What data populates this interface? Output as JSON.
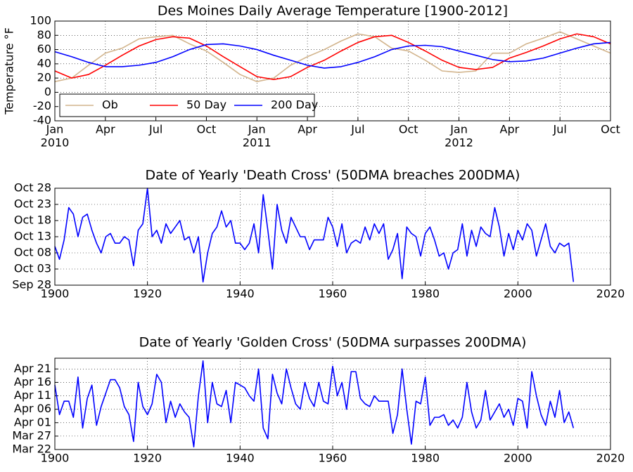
{
  "chart_data": [
    {
      "type": "line",
      "title": "Des Moines Daily Average Temperature [1900-2012]",
      "ylabel": "Temperature °F",
      "x": [
        "2010-01",
        "2010-02",
        "2010-03",
        "2010-04",
        "2010-05",
        "2010-06",
        "2010-07",
        "2010-08",
        "2010-09",
        "2010-10",
        "2010-11",
        "2010-12",
        "2011-01",
        "2011-02",
        "2011-03",
        "2011-04",
        "2011-05",
        "2011-06",
        "2011-07",
        "2011-08",
        "2011-09",
        "2011-10",
        "2011-11",
        "2011-12",
        "2012-01",
        "2012-02",
        "2012-03",
        "2012-04",
        "2012-05",
        "2012-06",
        "2012-07",
        "2012-08",
        "2012-09",
        "2012-10"
      ],
      "series": [
        {
          "name": "Ob",
          "color": "#d2b48c",
          "values": [
            15,
            20,
            38,
            55,
            62,
            75,
            78,
            80,
            68,
            58,
            42,
            25,
            15,
            20,
            38,
            50,
            60,
            72,
            82,
            78,
            62,
            58,
            45,
            30,
            28,
            30,
            55,
            55,
            68,
            76,
            85,
            75,
            65,
            55
          ]
        },
        {
          "name": "50 Day",
          "color": "#ff0000",
          "values": [
            30,
            20,
            25,
            38,
            52,
            65,
            74,
            78,
            76,
            65,
            50,
            36,
            22,
            18,
            22,
            35,
            45,
            58,
            70,
            78,
            80,
            70,
            58,
            45,
            35,
            32,
            35,
            48,
            56,
            65,
            75,
            82,
            78,
            68
          ]
        },
        {
          "name": "200 Day",
          "color": "#0000ff",
          "values": [
            57,
            50,
            42,
            36,
            36,
            38,
            42,
            50,
            60,
            67,
            68,
            65,
            60,
            52,
            45,
            38,
            34,
            36,
            42,
            50,
            60,
            65,
            66,
            64,
            58,
            52,
            46,
            43,
            44,
            48,
            55,
            62,
            68,
            70
          ]
        }
      ],
      "xlim": [
        "2010-01",
        "2012-10"
      ],
      "xticks": [
        {
          "value": "2010-01",
          "label": "Jan"
        },
        {
          "value": "2010-04",
          "label": "Apr"
        },
        {
          "value": "2010-07",
          "label": "Jul"
        },
        {
          "value": "2010-10",
          "label": "Oct"
        },
        {
          "value": "2011-01",
          "label": "Jan"
        },
        {
          "value": "2011-04",
          "label": "Apr"
        },
        {
          "value": "2011-07",
          "label": "Jul"
        },
        {
          "value": "2011-10",
          "label": "Oct"
        },
        {
          "value": "2012-01",
          "label": "Jan"
        },
        {
          "value": "2012-04",
          "label": "Apr"
        },
        {
          "value": "2012-07",
          "label": "Jul"
        },
        {
          "value": "2012-10",
          "label": "Oct"
        }
      ],
      "xtick_years": [
        {
          "value": "2010-01",
          "label": "2010"
        },
        {
          "value": "2011-01",
          "label": "2011"
        },
        {
          "value": "2012-01",
          "label": "2012"
        }
      ],
      "ylim": [
        -40,
        100
      ],
      "yticks": [
        -40,
        -20,
        0,
        20,
        40,
        60,
        80,
        100
      ],
      "grid": true,
      "legend": "lower left"
    },
    {
      "type": "line",
      "title": "Date of Yearly 'Death Cross' (50DMA breaches 200DMA)",
      "x": [
        1900,
        1901,
        1902,
        1903,
        1904,
        1905,
        1906,
        1907,
        1908,
        1909,
        1910,
        1911,
        1912,
        1913,
        1914,
        1915,
        1916,
        1917,
        1918,
        1919,
        1920,
        1921,
        1922,
        1923,
        1924,
        1925,
        1926,
        1927,
        1928,
        1929,
        1930,
        1931,
        1932,
        1933,
        1934,
        1935,
        1936,
        1937,
        1938,
        1939,
        1940,
        1941,
        1942,
        1943,
        1944,
        1945,
        1946,
        1947,
        1948,
        1949,
        1950,
        1951,
        1952,
        1953,
        1954,
        1955,
        1956,
        1957,
        1958,
        1959,
        1960,
        1961,
        1962,
        1963,
        1964,
        1965,
        1966,
        1967,
        1968,
        1969,
        1970,
        1971,
        1972,
        1973,
        1974,
        1975,
        1976,
        1977,
        1978,
        1979,
        1980,
        1981,
        1982,
        1983,
        1984,
        1985,
        1986,
        1987,
        1988,
        1989,
        1990,
        1991,
        1992,
        1993,
        1994,
        1995,
        1996,
        1997,
        1998,
        1999,
        2000,
        2001,
        2002,
        2003,
        2004,
        2005,
        2006,
        2007,
        2008,
        2009,
        2010,
        2011,
        2012
      ],
      "series": [
        {
          "color": "#0000ff",
          "values": [
            283,
            279,
            285,
            295,
            293,
            286,
            292,
            293,
            288,
            284,
            281,
            286,
            287,
            284,
            284,
            286,
            285,
            277,
            288,
            290,
            301,
            286,
            288,
            284,
            290,
            287,
            289,
            291,
            285,
            286,
            281,
            286,
            272,
            281,
            287,
            289,
            294,
            289,
            291,
            284,
            284,
            282,
            284,
            290,
            281,
            299,
            288,
            276,
            296,
            288,
            284,
            292,
            289,
            286,
            286,
            282,
            285,
            285,
            285,
            292,
            289,
            283,
            290,
            281,
            284,
            285,
            284,
            289,
            285,
            290,
            287,
            290,
            279,
            282,
            287,
            273,
            289,
            287,
            286,
            280,
            287,
            289,
            285,
            280,
            281,
            276,
            281,
            282,
            290,
            280,
            288,
            283,
            289,
            287,
            286,
            295,
            289,
            280,
            287,
            282,
            288,
            285,
            290,
            288,
            280,
            285,
            290,
            283,
            281,
            284,
            283,
            284,
            272
          ]
        }
      ],
      "xlim": [
        1900,
        2020
      ],
      "xticks": [
        1900,
        1920,
        1940,
        1960,
        1980,
        2000,
        2020
      ],
      "ylim": [
        271,
        301
      ],
      "yticks": [
        {
          "value": 271,
          "label": "Sep 28"
        },
        {
          "value": 276,
          "label": "Oct 03"
        },
        {
          "value": 281,
          "label": "Oct 08"
        },
        {
          "value": 286,
          "label": "Oct 13"
        },
        {
          "value": 291,
          "label": "Oct 18"
        },
        {
          "value": 296,
          "label": "Oct 23"
        },
        {
          "value": 301,
          "label": "Oct 28"
        }
      ],
      "grid": true
    },
    {
      "type": "line",
      "title": "Date of Yearly 'Golden Cross' (50DMA surpasses 200DMA)",
      "x": [
        1900,
        1901,
        1902,
        1903,
        1904,
        1905,
        1906,
        1907,
        1908,
        1909,
        1910,
        1911,
        1912,
        1913,
        1914,
        1915,
        1916,
        1917,
        1918,
        1919,
        1920,
        1921,
        1922,
        1923,
        1924,
        1925,
        1926,
        1927,
        1928,
        1929,
        1930,
        1931,
        1932,
        1933,
        1934,
        1935,
        1936,
        1937,
        1938,
        1939,
        1940,
        1941,
        1942,
        1943,
        1944,
        1945,
        1946,
        1947,
        1948,
        1949,
        1950,
        1951,
        1952,
        1953,
        1954,
        1955,
        1956,
        1957,
        1958,
        1959,
        1960,
        1961,
        1962,
        1963,
        1964,
        1965,
        1966,
        1967,
        1968,
        1969,
        1970,
        1971,
        1972,
        1973,
        1974,
        1975,
        1976,
        1977,
        1978,
        1979,
        1980,
        1981,
        1982,
        1983,
        1984,
        1985,
        1986,
        1987,
        1988,
        1989,
        1990,
        1991,
        1992,
        1993,
        1994,
        1995,
        1996,
        1997,
        1998,
        1999,
        2000,
        2001,
        2002,
        2003,
        2004,
        2005,
        2006,
        2007,
        2008,
        2009,
        2010,
        2011,
        2012
      ],
      "series": [
        {
          "color": "#0000ff",
          "values": [
            105,
            94,
            99,
            99,
            93,
            108,
            89,
            100,
            105,
            90,
            97,
            102,
            107,
            107,
            104,
            97,
            94,
            84,
            106,
            97,
            94,
            98,
            109,
            106,
            91,
            99,
            93,
            98,
            95,
            93,
            82,
            101,
            114,
            91,
            106,
            98,
            97,
            103,
            91,
            106,
            105,
            104,
            101,
            99,
            111,
            89,
            85,
            109,
            102,
            98,
            111,
            104,
            98,
            96,
            106,
            100,
            97,
            106,
            99,
            98,
            112,
            101,
            106,
            96,
            110,
            110,
            100,
            98,
            97,
            101,
            99,
            99,
            99,
            87,
            94,
            111,
            96,
            83,
            99,
            98,
            108,
            90,
            93,
            93,
            94,
            90,
            92,
            89,
            93,
            106,
            95,
            89,
            92,
            103,
            92,
            95,
            98,
            93,
            96,
            90,
            100,
            99,
            89,
            110,
            101,
            94,
            90,
            99,
            93,
            103,
            91,
            95,
            89
          ]
        }
      ],
      "xlim": [
        1900,
        2020
      ],
      "xticks": [
        1900,
        1920,
        1940,
        1960,
        1980,
        2000,
        2020
      ],
      "ylim": [
        81,
        115
      ],
      "yticks": [
        {
          "value": 81,
          "label": "Mar 22"
        },
        {
          "value": 86,
          "label": "Mar 27"
        },
        {
          "value": 91,
          "label": "Apr 01"
        },
        {
          "value": 96,
          "label": "Apr 06"
        },
        {
          "value": 101,
          "label": "Apr 11"
        },
        {
          "value": 106,
          "label": "Apr 16"
        },
        {
          "value": 111,
          "label": "Apr 21"
        }
      ],
      "grid": true
    }
  ]
}
